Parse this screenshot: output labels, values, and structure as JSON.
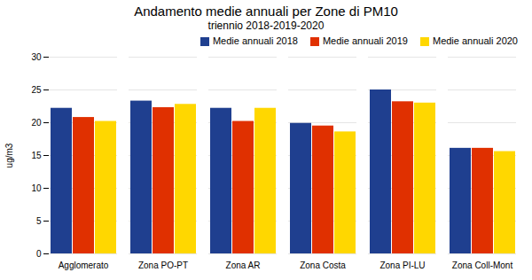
{
  "chart_data": {
    "type": "bar",
    "title": "Andamento medie annuali per Zone di PM10",
    "subtitle": "triennio 2018-2019-2020",
    "ylabel": "ug/m3",
    "categories": [
      "Agglomerato",
      "Zona PO-PT",
      "Zona AR",
      "Zona Costa",
      "Zona PI-LU",
      "Zona Coll-Mont"
    ],
    "series": [
      {
        "name": "Medie annuali 2018",
        "color": "#1F3F8F",
        "values": [
          22.2,
          23.3,
          22.2,
          19.9,
          25.0,
          16.1
        ]
      },
      {
        "name": "Medie annuali 2019",
        "color": "#E03000",
        "values": [
          20.8,
          22.3,
          20.2,
          19.5,
          23.2,
          16.1
        ]
      },
      {
        "name": "Medie annuali 2020",
        "color": "#FFD700",
        "values": [
          20.2,
          22.8,
          22.2,
          18.6,
          23.0,
          15.6
        ]
      }
    ],
    "ylim": [
      0,
      30
    ],
    "yticks": [
      0,
      5,
      10,
      15,
      20,
      25,
      30
    ],
    "grid": true,
    "legend": "upper right"
  }
}
